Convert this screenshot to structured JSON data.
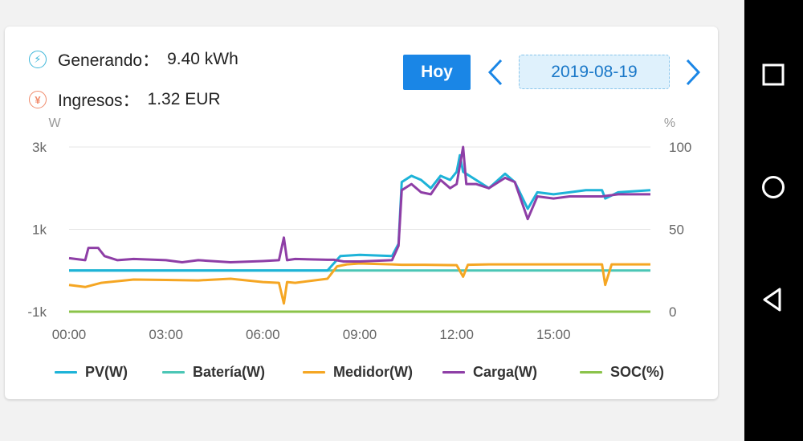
{
  "summary": {
    "generating_label": "Generando：",
    "generating_value": "9.40 kWh",
    "income_label": "Ingresos：",
    "income_value": "1.32 EUR"
  },
  "controls": {
    "today_label": "Hoy",
    "date": "2019-08-19",
    "prev_icon": "chevron-left-icon",
    "next_icon": "chevron-right-icon"
  },
  "chart_data": {
    "type": "line",
    "y_left_unit": "W",
    "y_right_unit": "%",
    "y_left_ticks": [
      "3k",
      "1k",
      "-1k"
    ],
    "y_left_values": [
      3000,
      1000,
      -1000
    ],
    "y_right_ticks": [
      "100",
      "50",
      "0"
    ],
    "y_right_values": [
      100,
      50,
      0
    ],
    "x_ticks": [
      "00:00",
      "03:00",
      "06:00",
      "09:00",
      "12:00",
      "15:00"
    ],
    "x_tick_hours": [
      0,
      3,
      6,
      9,
      12,
      15
    ],
    "x_range_hours": [
      0,
      18
    ],
    "ylim_left": [
      -1000,
      3000
    ],
    "ylim_right": [
      0,
      100
    ],
    "grid": true,
    "legend_position": "bottom",
    "series": [
      {
        "name": "PV(W)",
        "axis": "left",
        "color": "#1db3d8",
        "points": [
          [
            0,
            0
          ],
          [
            8,
            0
          ],
          [
            8.4,
            350
          ],
          [
            9,
            380
          ],
          [
            10,
            350
          ],
          [
            10.2,
            650
          ],
          [
            10.3,
            2150
          ],
          [
            10.6,
            2300
          ],
          [
            10.9,
            2200
          ],
          [
            11.2,
            2000
          ],
          [
            11.5,
            2300
          ],
          [
            11.8,
            2200
          ],
          [
            12.0,
            2400
          ],
          [
            12.1,
            2800
          ],
          [
            12.2,
            2400
          ],
          [
            12.6,
            2200
          ],
          [
            13.0,
            2000
          ],
          [
            13.5,
            2350
          ],
          [
            13.8,
            2150
          ],
          [
            14.2,
            1500
          ],
          [
            14.5,
            1900
          ],
          [
            15.0,
            1850
          ],
          [
            15.5,
            1900
          ],
          [
            16.0,
            1950
          ],
          [
            16.5,
            1950
          ],
          [
            16.6,
            1750
          ],
          [
            17.0,
            1900
          ],
          [
            18,
            1950
          ]
        ]
      },
      {
        "name": "Batería(W)",
        "axis": "left",
        "color": "#4bc6b6",
        "points": [
          [
            0,
            0
          ],
          [
            18,
            0
          ]
        ]
      },
      {
        "name": "Medidor(W)",
        "axis": "left",
        "color": "#f5a623",
        "points": [
          [
            0,
            -350
          ],
          [
            0.5,
            -400
          ],
          [
            1,
            -300
          ],
          [
            2,
            -220
          ],
          [
            3,
            -230
          ],
          [
            4,
            -240
          ],
          [
            5,
            -200
          ],
          [
            6,
            -280
          ],
          [
            6.5,
            -300
          ],
          [
            6.65,
            -800
          ],
          [
            6.75,
            -280
          ],
          [
            7,
            -300
          ],
          [
            8,
            -200
          ],
          [
            8.3,
            100
          ],
          [
            8.6,
            150
          ],
          [
            9,
            170
          ],
          [
            10,
            150
          ],
          [
            10.3,
            140
          ],
          [
            11,
            140
          ],
          [
            12,
            130
          ],
          [
            12.2,
            -150
          ],
          [
            12.35,
            140
          ],
          [
            13,
            150
          ],
          [
            14,
            150
          ],
          [
            15,
            150
          ],
          [
            16,
            150
          ],
          [
            16.5,
            150
          ],
          [
            16.6,
            -350
          ],
          [
            16.8,
            150
          ],
          [
            17.5,
            150
          ],
          [
            18,
            150
          ]
        ]
      },
      {
        "name": "Carga(W)",
        "axis": "left",
        "color": "#8e3ea6",
        "points": [
          [
            0,
            300
          ],
          [
            0.5,
            250
          ],
          [
            0.6,
            550
          ],
          [
            0.9,
            550
          ],
          [
            1.1,
            350
          ],
          [
            1.5,
            250
          ],
          [
            2,
            280
          ],
          [
            3,
            250
          ],
          [
            3.5,
            200
          ],
          [
            4,
            250
          ],
          [
            5,
            200
          ],
          [
            6,
            230
          ],
          [
            6.5,
            250
          ],
          [
            6.65,
            800
          ],
          [
            6.75,
            250
          ],
          [
            7,
            280
          ],
          [
            8,
            260
          ],
          [
            8.2,
            260
          ],
          [
            8.5,
            220
          ],
          [
            9,
            220
          ],
          [
            10,
            250
          ],
          [
            10.2,
            600
          ],
          [
            10.3,
            1950
          ],
          [
            10.6,
            2100
          ],
          [
            10.9,
            1900
          ],
          [
            11.2,
            1850
          ],
          [
            11.5,
            2200
          ],
          [
            11.8,
            2000
          ],
          [
            12.0,
            2100
          ],
          [
            12.2,
            3000
          ],
          [
            12.3,
            2100
          ],
          [
            12.6,
            2100
          ],
          [
            13.0,
            2000
          ],
          [
            13.5,
            2250
          ],
          [
            13.8,
            2150
          ],
          [
            14.2,
            1250
          ],
          [
            14.5,
            1800
          ],
          [
            15.0,
            1750
          ],
          [
            15.5,
            1800
          ],
          [
            16.0,
            1800
          ],
          [
            16.5,
            1800
          ],
          [
            17.0,
            1850
          ],
          [
            18,
            1850
          ]
        ]
      },
      {
        "name": "SOC(%)",
        "axis": "right",
        "color": "#8bc34a",
        "points": [
          [
            0,
            0
          ],
          [
            18,
            0
          ]
        ]
      }
    ]
  },
  "navbar": {
    "icons": [
      "recent-apps-icon",
      "home-icon",
      "back-icon"
    ]
  }
}
